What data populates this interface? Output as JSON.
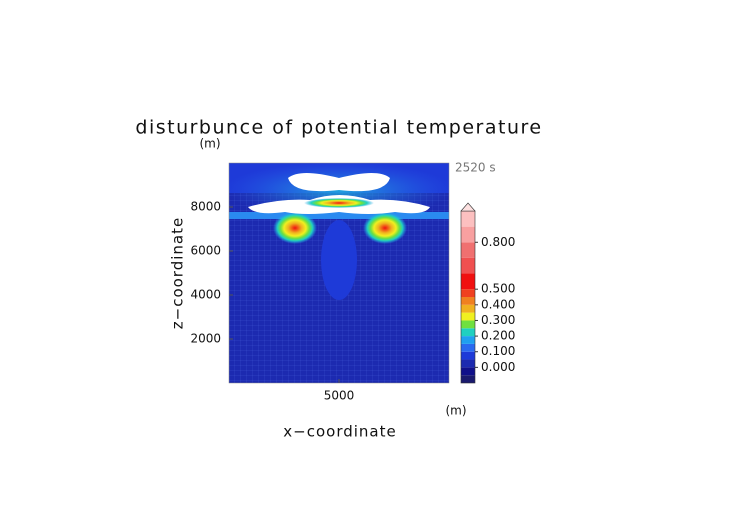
{
  "chart_data": {
    "type": "contour",
    "title": "disturbunce of potential temperature",
    "y_unit": "(m)",
    "x_unit": "(m)",
    "time_label": "2520 s",
    "x_label": "x−coordinate",
    "y_label": "z−coordinate",
    "xlim": [
      0,
      10000
    ],
    "ylim": [
      0,
      10000
    ],
    "xticks": [
      5000
    ],
    "yticks": [
      2000,
      4000,
      6000,
      8000
    ],
    "colorbar": {
      "levels": [
        -0.1,
        -0.05,
        0,
        0.05,
        0.1,
        0.15,
        0.2,
        0.25,
        0.3,
        0.35,
        0.4,
        0.45,
        0.5,
        0.6,
        0.7,
        0.8,
        0.9,
        1.0
      ],
      "colors": [
        "#1a1a6e",
        "#10108a",
        "#1c2ab0",
        "#1e3ad8",
        "#2a6af0",
        "#20a0f0",
        "#20d0c0",
        "#70e040",
        "#f0f020",
        "#f0b020",
        "#f08020",
        "#f04020",
        "#f01010",
        "#f05050",
        "#f07070",
        "#f8a0a0",
        "#fcc0c0"
      ],
      "ticks": [
        {
          "value": 0,
          "label": "0.000"
        },
        {
          "value": 0.1,
          "label": "0.100"
        },
        {
          "value": 0.2,
          "label": "0.200"
        },
        {
          "value": 0.3,
          "label": "0.300"
        },
        {
          "value": 0.4,
          "label": "0.400"
        },
        {
          "value": 0.5,
          "label": "0.500"
        },
        {
          "value": 0.8,
          "label": "0.800"
        }
      ],
      "extend": "max"
    }
  }
}
